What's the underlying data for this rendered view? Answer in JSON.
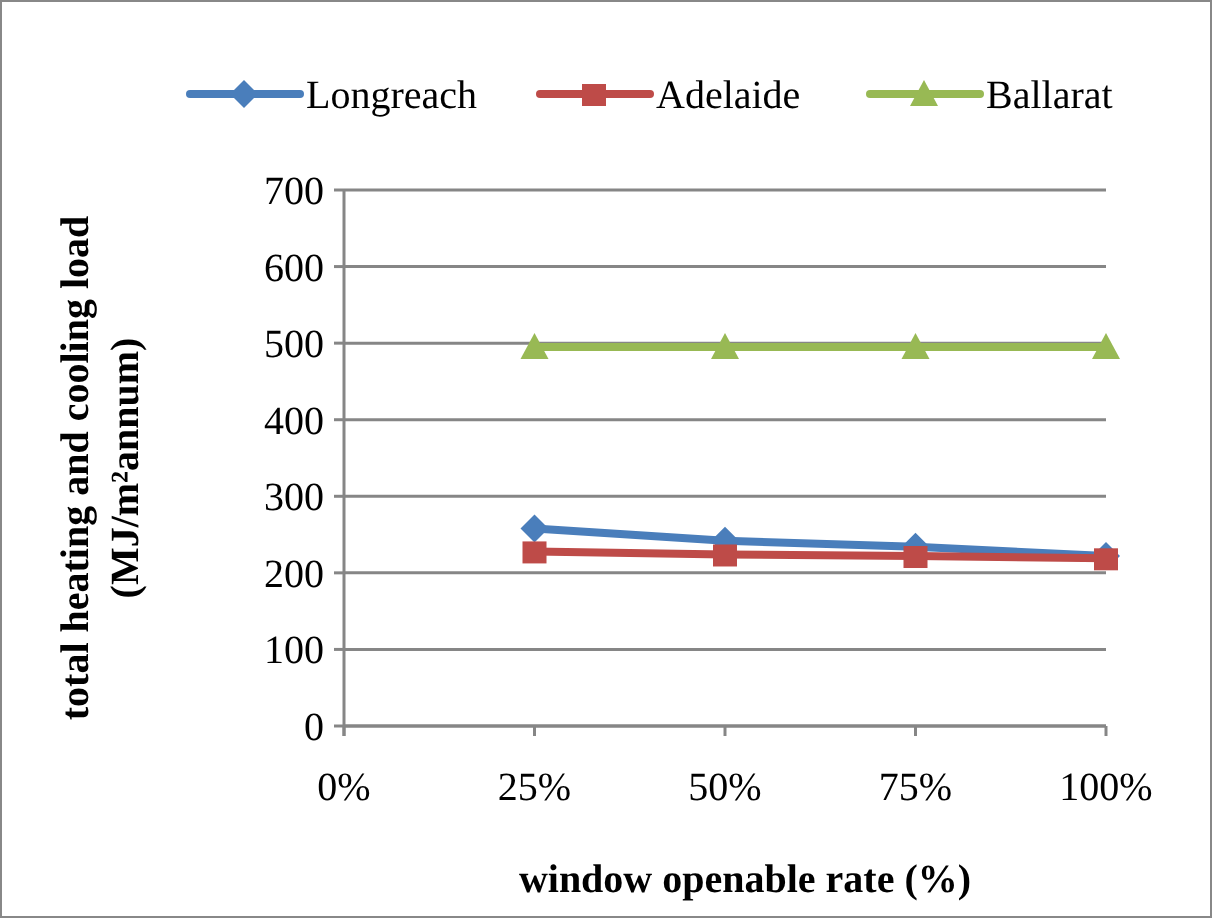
{
  "chart_data": {
    "type": "line",
    "xlabel": "window openable rate (%)",
    "ylabel": "total heating and cooling load\n(MJ/m²annum)",
    "x": [
      25,
      50,
      75,
      100
    ],
    "xlim": [
      0,
      100
    ],
    "xticks": [
      {
        "value": 0,
        "label": "0%"
      },
      {
        "value": 25,
        "label": "25%"
      },
      {
        "value": 50,
        "label": "50%"
      },
      {
        "value": 75,
        "label": "75%"
      },
      {
        "value": 100,
        "label": "100%"
      }
    ],
    "ylim": [
      0,
      700
    ],
    "yticks": [
      0,
      100,
      200,
      300,
      400,
      500,
      600,
      700
    ],
    "grid": "y",
    "legend": "top",
    "series": [
      {
        "name": "Longreach",
        "color": "#4a7ebb",
        "marker": "diamond",
        "values": [
          258,
          242,
          234,
          222
        ]
      },
      {
        "name": "Adelaide",
        "color": "#be4b48",
        "marker": "square",
        "values": [
          228,
          224,
          222,
          219
        ]
      },
      {
        "name": "Ballarat",
        "color": "#98b954",
        "marker": "triangle",
        "values": [
          495,
          495,
          495,
          495
        ]
      }
    ]
  }
}
